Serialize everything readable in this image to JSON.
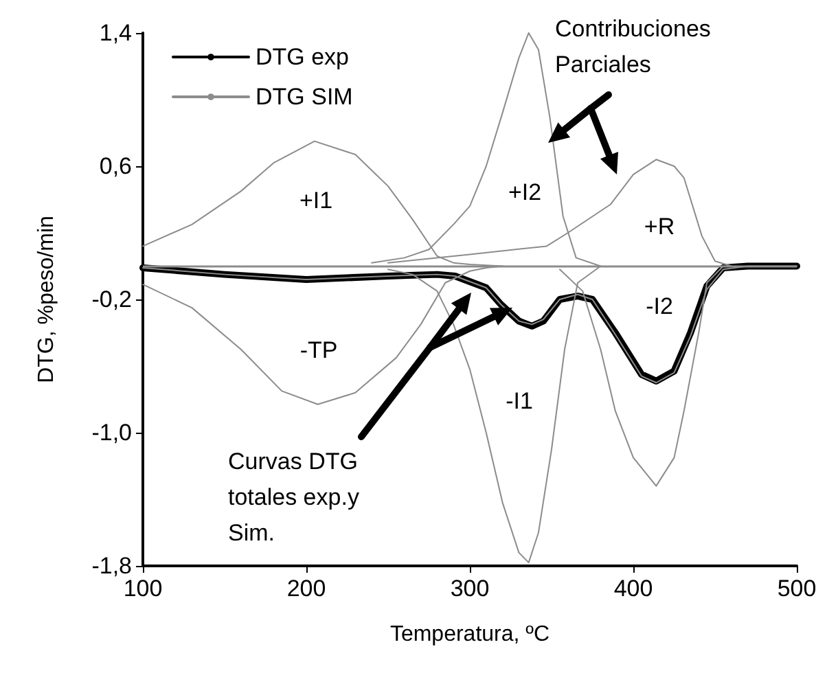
{
  "chart_data": {
    "type": "line",
    "xlabel": "Temperatura, ºC",
    "ylabel": "DTG, %peso/min",
    "xlim": [
      100,
      500
    ],
    "xticks": [
      100,
      200,
      300,
      400,
      500
    ],
    "ylim": [
      -1.8,
      1.4
    ],
    "yticks": [
      {
        "value": 1.4,
        "label": "1,4"
      },
      {
        "value": 0.6,
        "label": "0,6"
      },
      {
        "value": -0.2,
        "label": "-0,2"
      },
      {
        "value": -1.0,
        "label": "-1,0"
      },
      {
        "value": -1.8,
        "label": "-1,8"
      }
    ],
    "grid": false,
    "legend": "top left",
    "marker": "none",
    "line_style": "solid",
    "ref_lines": [
      {
        "axis": "y",
        "value": 0,
        "color": "#8c8c8c"
      }
    ],
    "series": [
      {
        "name": "DTG exp",
        "color": "#000000",
        "x": [
          100,
          150,
          200,
          250,
          280,
          291,
          310,
          319,
          330,
          338,
          345,
          355,
          366,
          375,
          389,
          405,
          414,
          425,
          435,
          445,
          455,
          470,
          500
        ],
        "values": [
          -0.01,
          -0.05,
          -0.08,
          -0.06,
          -0.05,
          -0.06,
          -0.13,
          -0.23,
          -0.33,
          -0.36,
          -0.33,
          -0.2,
          -0.18,
          -0.2,
          -0.4,
          -0.65,
          -0.69,
          -0.63,
          -0.4,
          -0.12,
          -0.01,
          0,
          0
        ]
      },
      {
        "name": "DTG SIM",
        "color": "#8c8c8c",
        "x": [
          100,
          150,
          200,
          250,
          280,
          291,
          310,
          319,
          330,
          338,
          345,
          355,
          366,
          375,
          389,
          405,
          414,
          425,
          435,
          445,
          455,
          470,
          500
        ],
        "values": [
          -0.01,
          -0.05,
          -0.08,
          -0.06,
          -0.05,
          -0.06,
          -0.13,
          -0.23,
          -0.33,
          -0.35,
          -0.32,
          -0.2,
          -0.17,
          -0.2,
          -0.41,
          -0.66,
          -0.7,
          -0.64,
          -0.42,
          -0.14,
          -0.02,
          0,
          0
        ]
      },
      {
        "color": "#8c8c8c",
        "x": [
          100,
          130,
          160,
          180,
          205,
          230,
          250,
          265,
          280,
          290,
          300,
          320
        ],
        "values": [
          0.12,
          0.25,
          0.45,
          0.62,
          0.75,
          0.67,
          0.48,
          0.28,
          0.06,
          0.02,
          0.01,
          0
        ]
      },
      {
        "color": "#8c8c8c",
        "x": [
          100,
          130,
          160,
          185,
          207,
          230,
          255,
          270,
          285,
          300,
          310,
          320
        ],
        "values": [
          -0.11,
          -0.25,
          -0.5,
          -0.75,
          -0.83,
          -0.76,
          -0.55,
          -0.35,
          -0.1,
          -0.03,
          -0.01,
          0
        ]
      },
      {
        "color": "#8c8c8c",
        "x": [
          240,
          260,
          275,
          290,
          300,
          310,
          320,
          330,
          336,
          342,
          349,
          357,
          365,
          380
        ],
        "values": [
          0.02,
          0.05,
          0.1,
          0.25,
          0.36,
          0.6,
          0.92,
          1.25,
          1.4,
          1.3,
          0.89,
          0.3,
          0.05,
          0
        ]
      },
      {
        "color": "#8c8c8c",
        "x": [
          250,
          265,
          280,
          290,
          300,
          310,
          320,
          330,
          336,
          342,
          350,
          358,
          366,
          380
        ],
        "values": [
          -0.02,
          -0.05,
          -0.15,
          -0.35,
          -0.62,
          -1.0,
          -1.42,
          -1.72,
          -1.78,
          -1.6,
          -1.1,
          -0.5,
          -0.1,
          0
        ]
      },
      {
        "color": "#8c8c8c",
        "x": [
          250,
          300,
          347,
          360,
          386,
          400,
          414,
          425,
          431,
          442,
          450,
          460
        ],
        "values": [
          0.02,
          0.07,
          0.12,
          0.2,
          0.37,
          0.55,
          0.64,
          0.6,
          0.53,
          0.18,
          0.03,
          0
        ]
      },
      {
        "color": "#8c8c8c",
        "x": [
          355,
          369,
          380,
          389,
          400,
          414,
          425,
          431,
          440,
          445,
          455
        ],
        "values": [
          -0.02,
          -0.15,
          -0.5,
          -0.87,
          -1.15,
          -1.32,
          -1.15,
          -0.87,
          -0.4,
          -0.1,
          0
        ]
      }
    ],
    "annotations": [
      "+I1",
      "-TP",
      "+I2",
      "-I1",
      "+R",
      "-I2",
      "Contribuciones Parciales",
      "Curvas DTG totales exp.y Sim."
    ]
  }
}
